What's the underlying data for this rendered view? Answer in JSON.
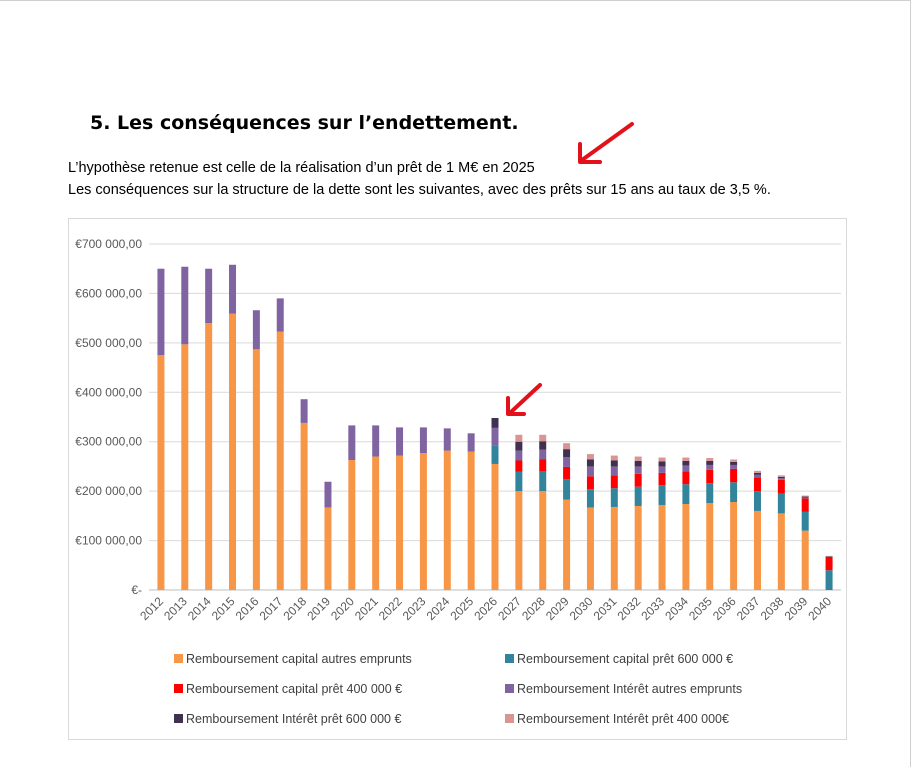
{
  "document": {
    "section_title": "5. Les conséquences sur l’endettement.",
    "paragraph_1": "L’hypothèse retenue est celle de la réalisation d’un prêt de 1 M€ en 2025",
    "paragraph_2": "Les conséquences sur la structure de la dette sont les suivantes, avec des prêts sur 15 ans au taux de 3,5 %."
  },
  "annotations": {
    "arrow_color": "#e3121a"
  },
  "chart_data": {
    "type": "bar",
    "stacked": true,
    "title": "",
    "xlabel": "",
    "ylabel": "",
    "ylim": [
      0,
      700000
    ],
    "yticks": [
      0,
      100000,
      200000,
      300000,
      400000,
      500000,
      600000,
      700000
    ],
    "ytick_labels": [
      "€-",
      "€100 000,00",
      "€200 000,00",
      "€300 000,00",
      "€400 000,00",
      "€500 000,00",
      "€600 000,00",
      "€700 000,00"
    ],
    "grid": true,
    "legend_position": "bottom",
    "categories": [
      "2012",
      "2013",
      "2014",
      "2015",
      "2016",
      "2017",
      "2018",
      "2019",
      "2020",
      "2021",
      "2022",
      "2023",
      "2024",
      "2025",
      "2026",
      "2027",
      "2028",
      "2029",
      "2030",
      "2031",
      "2032",
      "2033",
      "2034",
      "2035",
      "2036",
      "2037",
      "2038",
      "2039",
      "2040"
    ],
    "series": [
      {
        "name": "Remboursement capital autres emprunts",
        "color": "#f79646",
        "values": [
          475000,
          497000,
          540000,
          559000,
          487000,
          523000,
          338000,
          167000,
          263000,
          270000,
          272000,
          277000,
          282000,
          280000,
          255000,
          200000,
          200000,
          183000,
          167000,
          168000,
          170000,
          172000,
          174000,
          176000,
          178000,
          160000,
          155000,
          120000,
          0
        ]
      },
      {
        "name": "Remboursement capital prêt  600 000 €",
        "color": "#31849b",
        "values": [
          0,
          0,
          0,
          0,
          0,
          0,
          0,
          0,
          0,
          0,
          0,
          0,
          0,
          0,
          38000,
          39000,
          40000,
          41000,
          37000,
          38000,
          39000,
          40000,
          40000,
          40000,
          40000,
          40000,
          40000,
          38000,
          40000
        ]
      },
      {
        "name": "Remboursement capital prêt 400 000 €",
        "color": "#ff0000",
        "values": [
          0,
          0,
          0,
          0,
          0,
          0,
          0,
          0,
          0,
          0,
          0,
          0,
          0,
          0,
          0,
          23000,
          24000,
          25000,
          26000,
          26000,
          26000,
          25000,
          26000,
          27000,
          27000,
          28000,
          28000,
          27000,
          27000
        ]
      },
      {
        "name": "Remboursement Intérêt autres emprunts",
        "color": "#8064a2",
        "values": [
          175000,
          157000,
          110000,
          99000,
          79000,
          67000,
          48000,
          52000,
          70000,
          63000,
          57000,
          52000,
          45000,
          37000,
          35000,
          20000,
          20000,
          20000,
          20000,
          18000,
          15000,
          13000,
          12000,
          10000,
          8000,
          5000,
          3000,
          2000,
          0
        ]
      },
      {
        "name": "Remboursement Intérêt prêt 600 000 €",
        "color": "#403151",
        "values": [
          0,
          0,
          0,
          0,
          0,
          0,
          0,
          0,
          0,
          0,
          0,
          0,
          0,
          0,
          20000,
          18000,
          17000,
          16000,
          14000,
          12000,
          11000,
          10000,
          9000,
          8000,
          6000,
          4000,
          3000,
          2000,
          1000
        ]
      },
      {
        "name": "Remboursement Intérêt prêt 400 000€",
        "color": "#d99594",
        "values": [
          0,
          0,
          0,
          0,
          0,
          0,
          0,
          0,
          0,
          0,
          0,
          0,
          0,
          0,
          0,
          14000,
          13000,
          12000,
          11000,
          10000,
          9000,
          8000,
          7000,
          6000,
          5000,
          4000,
          3000,
          2000,
          1000
        ]
      }
    ]
  }
}
